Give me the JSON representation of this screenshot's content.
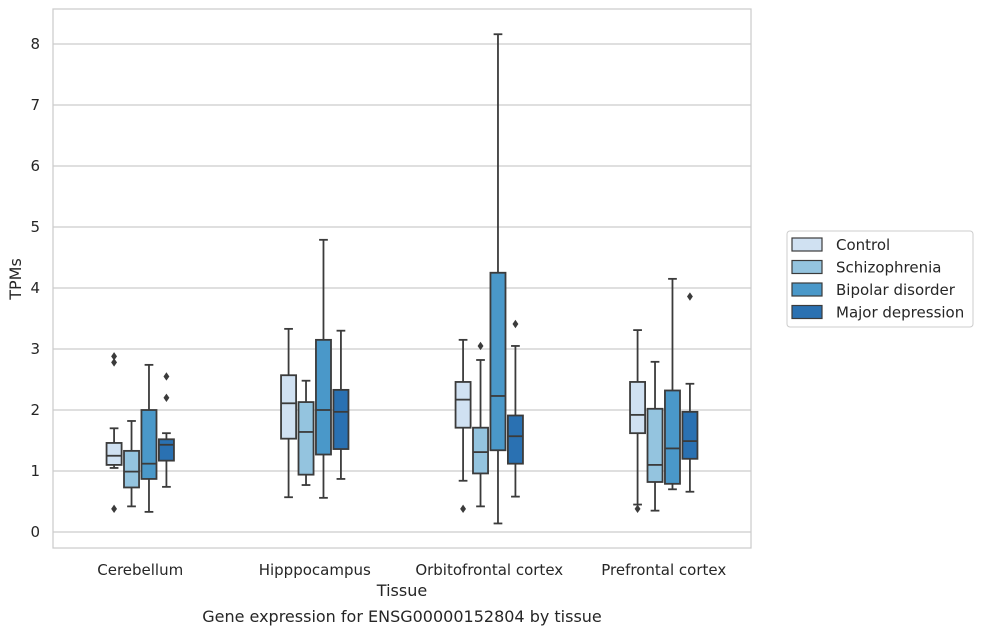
{
  "chart_data": {
    "type": "box",
    "title": "",
    "caption": "Gene expression for ENSG00000152804 by tissue",
    "xlabel": "Tissue",
    "ylabel": "TPMs",
    "ylim": [
      -0.25,
      8.58
    ],
    "yticks": [
      0,
      1,
      2,
      3,
      4,
      5,
      6,
      7,
      8
    ],
    "grid": "horizontal",
    "legend_position": "right",
    "categories": [
      "Cerebellum",
      "Hipppocampus",
      "Orbitofrontal cortex",
      "Prefrontal cortex"
    ],
    "series": [
      {
        "name": "Control",
        "color": "#d0e1f2",
        "boxes": [
          {
            "whislo": 1.05,
            "q1": 1.1,
            "med": 1.25,
            "q3": 1.46,
            "whishi": 1.7,
            "fliers": [
              2.78,
              2.88,
              0.38
            ]
          },
          {
            "whislo": 0.57,
            "q1": 1.53,
            "med": 2.11,
            "q3": 2.57,
            "whishi": 3.33,
            "fliers": []
          },
          {
            "whislo": 0.84,
            "q1": 1.71,
            "med": 2.17,
            "q3": 2.46,
            "whishi": 3.15,
            "fliers": [
              0.38
            ]
          },
          {
            "whislo": 0.45,
            "q1": 1.62,
            "med": 1.92,
            "q3": 2.46,
            "whishi": 3.31,
            "fliers": [
              0.38
            ]
          }
        ]
      },
      {
        "name": "Schizophrenia",
        "color": "#94c4df",
        "boxes": [
          {
            "whislo": 0.42,
            "q1": 0.73,
            "med": 0.99,
            "q3": 1.33,
            "whishi": 1.82,
            "fliers": []
          },
          {
            "whislo": 0.77,
            "q1": 0.94,
            "med": 1.64,
            "q3": 2.13,
            "whishi": 2.48,
            "fliers": []
          },
          {
            "whislo": 0.42,
            "q1": 0.96,
            "med": 1.31,
            "q3": 1.71,
            "whishi": 2.82,
            "fliers": [
              3.05
            ]
          },
          {
            "whislo": 0.35,
            "q1": 0.82,
            "med": 1.1,
            "q3": 2.02,
            "whishi": 2.79,
            "fliers": []
          }
        ]
      },
      {
        "name": "Bipolar disorder",
        "color": "#4a98c9",
        "boxes": [
          {
            "whislo": 0.33,
            "q1": 0.87,
            "med": 1.12,
            "q3": 2.0,
            "whishi": 2.74,
            "fliers": []
          },
          {
            "whislo": 0.56,
            "q1": 1.27,
            "med": 2.0,
            "q3": 3.15,
            "whishi": 4.79,
            "fliers": []
          },
          {
            "whislo": 0.14,
            "q1": 1.34,
            "med": 2.23,
            "q3": 4.25,
            "whishi": 8.16,
            "fliers": []
          },
          {
            "whislo": 0.7,
            "q1": 0.79,
            "med": 1.37,
            "q3": 2.32,
            "whishi": 4.15,
            "fliers": []
          }
        ]
      },
      {
        "name": "Major depression",
        "color": "#2a71b2",
        "boxes": [
          {
            "whislo": 0.74,
            "q1": 1.17,
            "med": 1.43,
            "q3": 1.52,
            "whishi": 1.62,
            "fliers": [
              2.2,
              2.55
            ]
          },
          {
            "whislo": 0.87,
            "q1": 1.36,
            "med": 1.97,
            "q3": 2.33,
            "whishi": 3.3,
            "fliers": []
          },
          {
            "whislo": 0.58,
            "q1": 1.12,
            "med": 1.57,
            "q3": 1.91,
            "whishi": 3.05,
            "fliers": [
              3.41
            ]
          },
          {
            "whislo": 0.66,
            "q1": 1.2,
            "med": 1.49,
            "q3": 1.97,
            "whishi": 2.43,
            "fliers": [
              3.86
            ]
          }
        ]
      }
    ]
  }
}
